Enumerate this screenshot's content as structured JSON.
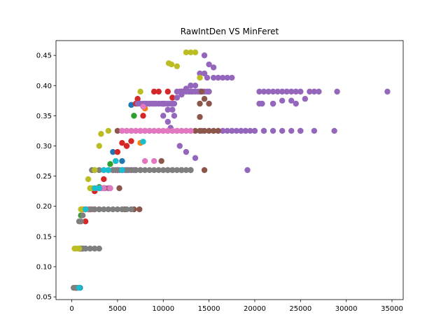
{
  "chart_data": {
    "type": "scatter",
    "title": "RawIntDen VS MinFeret",
    "xlabel": "",
    "ylabel": "",
    "xlim": [
      -1725,
      36225
    ],
    "ylim": [
      0.0455,
      0.4745
    ],
    "xticks": [
      0,
      5000,
      10000,
      15000,
      20000,
      25000,
      30000,
      35000
    ],
    "xtick_labels": [
      "0",
      "5000",
      "10000",
      "15000",
      "20000",
      "25000",
      "30000",
      "35000"
    ],
    "yticks": [
      0.05,
      0.1,
      0.15,
      0.2,
      0.25,
      0.3,
      0.35,
      0.4,
      0.45
    ],
    "ytick_labels": [
      "0.05",
      "0.10",
      "0.15",
      "0.20",
      "0.25",
      "0.30",
      "0.35",
      "0.40",
      "0.45"
    ],
    "grid": false,
    "legend": false,
    "series": [
      {
        "color": "#1f77b4",
        "x": [
          6500,
          4500,
          5500,
          5000,
          3000,
          1500,
          900
        ],
        "y": [
          0.368,
          0.29,
          0.275,
          0.26,
          0.23,
          0.195,
          0.065
        ]
      },
      {
        "color": "#ff7f0e",
        "x": [
          8000,
          7500,
          6000,
          4800,
          3500,
          1200,
          600
        ],
        "y": [
          0.362,
          0.305,
          0.3,
          0.26,
          0.23,
          0.195,
          0.065
        ]
      },
      {
        "color": "#2ca02c",
        "x": [
          6800,
          4200,
          3000,
          1800,
          1000,
          800,
          400
        ],
        "y": [
          0.35,
          0.27,
          0.232,
          0.195,
          0.185,
          0.13,
          0.065
        ]
      },
      {
        "color": "#d62728",
        "x": [
          12000,
          11000,
          10500,
          10000,
          9500,
          9000,
          8500,
          7800,
          7200,
          7000,
          6500,
          6000,
          5500,
          5000,
          4800,
          4500,
          4000,
          3500,
          3200,
          2800,
          2500,
          2000,
          1800,
          1500,
          1200,
          900,
          500
        ],
        "y": [
          0.39,
          0.38,
          0.39,
          0.37,
          0.39,
          0.39,
          0.37,
          0.35,
          0.378,
          0.37,
          0.308,
          0.3,
          0.305,
          0.29,
          0.275,
          0.26,
          0.26,
          0.245,
          0.23,
          0.23,
          0.225,
          0.195,
          0.195,
          0.175,
          0.13,
          0.13,
          0.065
        ]
      },
      {
        "color": "#9467bd",
        "x": [
          34500,
          29000,
          27000,
          26500,
          26000,
          25000,
          24500,
          24000,
          23500,
          23000,
          22500,
          22000,
          21500,
          21000,
          20500,
          20000,
          19500,
          19000,
          18500,
          18000,
          17500,
          17000,
          16500,
          16000,
          15500,
          15000,
          14800,
          14500,
          14200,
          14000,
          13800,
          13500,
          13200,
          13000,
          12800,
          12500,
          12200,
          12000,
          11800,
          11500,
          11200,
          11000,
          10800,
          10500,
          10200,
          10000,
          9800,
          9500,
          9200,
          9000,
          8800,
          8500,
          8200,
          8000,
          7800,
          7500,
          7200,
          7000,
          6800,
          6500,
          6200,
          6000,
          5800,
          5500,
          5200,
          5000,
          4800,
          4500,
          4000,
          3500,
          3000,
          2500,
          19200,
          21000,
          25000,
          26500,
          28700,
          16000,
          15500,
          14800,
          24000,
          23000,
          22000,
          20800,
          22000,
          24500,
          25500,
          20500,
          13000,
          12500,
          12000,
          11500,
          11000,
          10500,
          10000,
          14500,
          15000,
          15500,
          16500,
          17000,
          17500,
          14500,
          14000,
          13500,
          13000,
          10800,
          10500,
          11200,
          11800,
          12500,
          13500,
          14200,
          15000,
          16500,
          17500,
          18500,
          19000,
          20000,
          21000,
          22000,
          23000,
          24000,
          25000
        ],
        "y": [
          0.39,
          0.39,
          0.39,
          0.39,
          0.39,
          0.39,
          0.39,
          0.39,
          0.39,
          0.39,
          0.39,
          0.39,
          0.39,
          0.39,
          0.39,
          0.325,
          0.325,
          0.325,
          0.325,
          0.325,
          0.325,
          0.325,
          0.325,
          0.325,
          0.325,
          0.39,
          0.39,
          0.39,
          0.39,
          0.39,
          0.39,
          0.39,
          0.39,
          0.39,
          0.39,
          0.39,
          0.39,
          0.39,
          0.39,
          0.39,
          0.37,
          0.37,
          0.37,
          0.37,
          0.37,
          0.37,
          0.37,
          0.37,
          0.37,
          0.37,
          0.37,
          0.37,
          0.37,
          0.37,
          0.37,
          0.37,
          0.37,
          0.26,
          0.26,
          0.26,
          0.26,
          0.26,
          0.26,
          0.26,
          0.26,
          0.26,
          0.26,
          0.26,
          0.23,
          0.23,
          0.195,
          0.195,
          0.26,
          0.325,
          0.325,
          0.325,
          0.325,
          0.413,
          0.413,
          0.413,
          0.375,
          0.375,
          0.37,
          0.37,
          0.37,
          0.37,
          0.378,
          0.37,
          0.4,
          0.395,
          0.385,
          0.38,
          0.36,
          0.36,
          0.35,
          0.45,
          0.435,
          0.43,
          0.413,
          0.413,
          0.413,
          0.42,
          0.42,
          0.4,
          0.4,
          0.33,
          0.34,
          0.35,
          0.3,
          0.29,
          0.28,
          0.325,
          0.325,
          0.325,
          0.325,
          0.325,
          0.325,
          0.325,
          0.325,
          0.325,
          0.325,
          0.325,
          0.325
        ]
      },
      {
        "color": "#8c564b",
        "x": [
          16000,
          15500,
          15000,
          14500,
          14000,
          13500,
          13000,
          12500,
          12000,
          11500,
          11000,
          10500,
          10000,
          9500,
          9000,
          8500,
          8000,
          7500,
          7000,
          6500,
          6000,
          5500,
          5000,
          14500,
          13000,
          12000,
          11000,
          10500,
          14000,
          14500,
          9800,
          7400,
          6800,
          5800,
          5200,
          4200,
          3600,
          3000,
          2200,
          1500,
          1000,
          500,
          15000,
          14200,
          14000
        ],
        "y": [
          0.325,
          0.325,
          0.325,
          0.325,
          0.325,
          0.325,
          0.325,
          0.325,
          0.325,
          0.325,
          0.325,
          0.325,
          0.325,
          0.325,
          0.325,
          0.325,
          0.325,
          0.325,
          0.325,
          0.325,
          0.325,
          0.325,
          0.325,
          0.26,
          0.26,
          0.26,
          0.26,
          0.26,
          0.348,
          0.378,
          0.275,
          0.195,
          0.195,
          0.195,
          0.23,
          0.23,
          0.23,
          0.23,
          0.195,
          0.195,
          0.13,
          0.065,
          0.37,
          0.39,
          0.37
        ]
      },
      {
        "color": "#e377c2",
        "x": [
          13000,
          12500,
          12000,
          11500,
          11000,
          10500,
          10000,
          9500,
          9000,
          8500,
          8000,
          7500,
          7000,
          6500,
          6000,
          5500,
          5000,
          4500,
          4000,
          3500,
          3200,
          2800,
          2400,
          1800,
          1200,
          800,
          9000,
          8000,
          7500,
          7800,
          4200,
          3500
        ],
        "y": [
          0.325,
          0.325,
          0.325,
          0.325,
          0.325,
          0.325,
          0.325,
          0.325,
          0.325,
          0.325,
          0.325,
          0.325,
          0.325,
          0.325,
          0.325,
          0.325,
          0.26,
          0.26,
          0.26,
          0.26,
          0.23,
          0.23,
          0.195,
          0.195,
          0.13,
          0.13,
          0.275,
          0.275,
          0.26,
          0.365,
          0.23,
          0.23
        ]
      },
      {
        "color": "#7f7f7f",
        "x": [
          13000,
          12500,
          12000,
          11500,
          11000,
          10500,
          10000,
          9500,
          9000,
          8500,
          8000,
          7500,
          7000,
          6500,
          6000,
          5500,
          5000,
          4500,
          4000,
          3500,
          3000,
          2500,
          2200,
          6500,
          6000,
          5500,
          5000,
          4500,
          4000,
          3500,
          3000,
          2500,
          2000,
          1500,
          1200,
          1000,
          800,
          3000,
          2500,
          2000,
          1500,
          1200,
          1000,
          800,
          600,
          400,
          200,
          1500,
          1200,
          1000
        ],
        "y": [
          0.26,
          0.26,
          0.26,
          0.26,
          0.26,
          0.26,
          0.26,
          0.26,
          0.26,
          0.26,
          0.26,
          0.26,
          0.26,
          0.26,
          0.26,
          0.26,
          0.26,
          0.26,
          0.26,
          0.26,
          0.26,
          0.26,
          0.26,
          0.195,
          0.195,
          0.195,
          0.195,
          0.195,
          0.195,
          0.195,
          0.195,
          0.195,
          0.195,
          0.195,
          0.185,
          0.175,
          0.175,
          0.13,
          0.13,
          0.13,
          0.13,
          0.13,
          0.13,
          0.13,
          0.065,
          0.065,
          0.065,
          0.13,
          0.13,
          0.13
        ]
      },
      {
        "color": "#bcbd22",
        "x": [
          12500,
          13000,
          13500,
          11500,
          10600,
          10900,
          14000,
          7500,
          4000,
          3000,
          2500,
          2000,
          1800,
          1500,
          1000,
          800,
          500,
          300,
          3200,
          2200
        ],
        "y": [
          0.455,
          0.455,
          0.455,
          0.432,
          0.437,
          0.435,
          0.413,
          0.39,
          0.325,
          0.3,
          0.26,
          0.23,
          0.245,
          0.195,
          0.195,
          0.13,
          0.13,
          0.13,
          0.32,
          0.23
        ]
      },
      {
        "color": "#17becf",
        "x": [
          7800,
          5500,
          4800,
          4000,
          3500,
          3000,
          2500,
          1500,
          800
        ],
        "y": [
          0.307,
          0.26,
          0.275,
          0.26,
          0.26,
          0.23,
          0.23,
          0.195,
          0.065
        ]
      }
    ]
  }
}
